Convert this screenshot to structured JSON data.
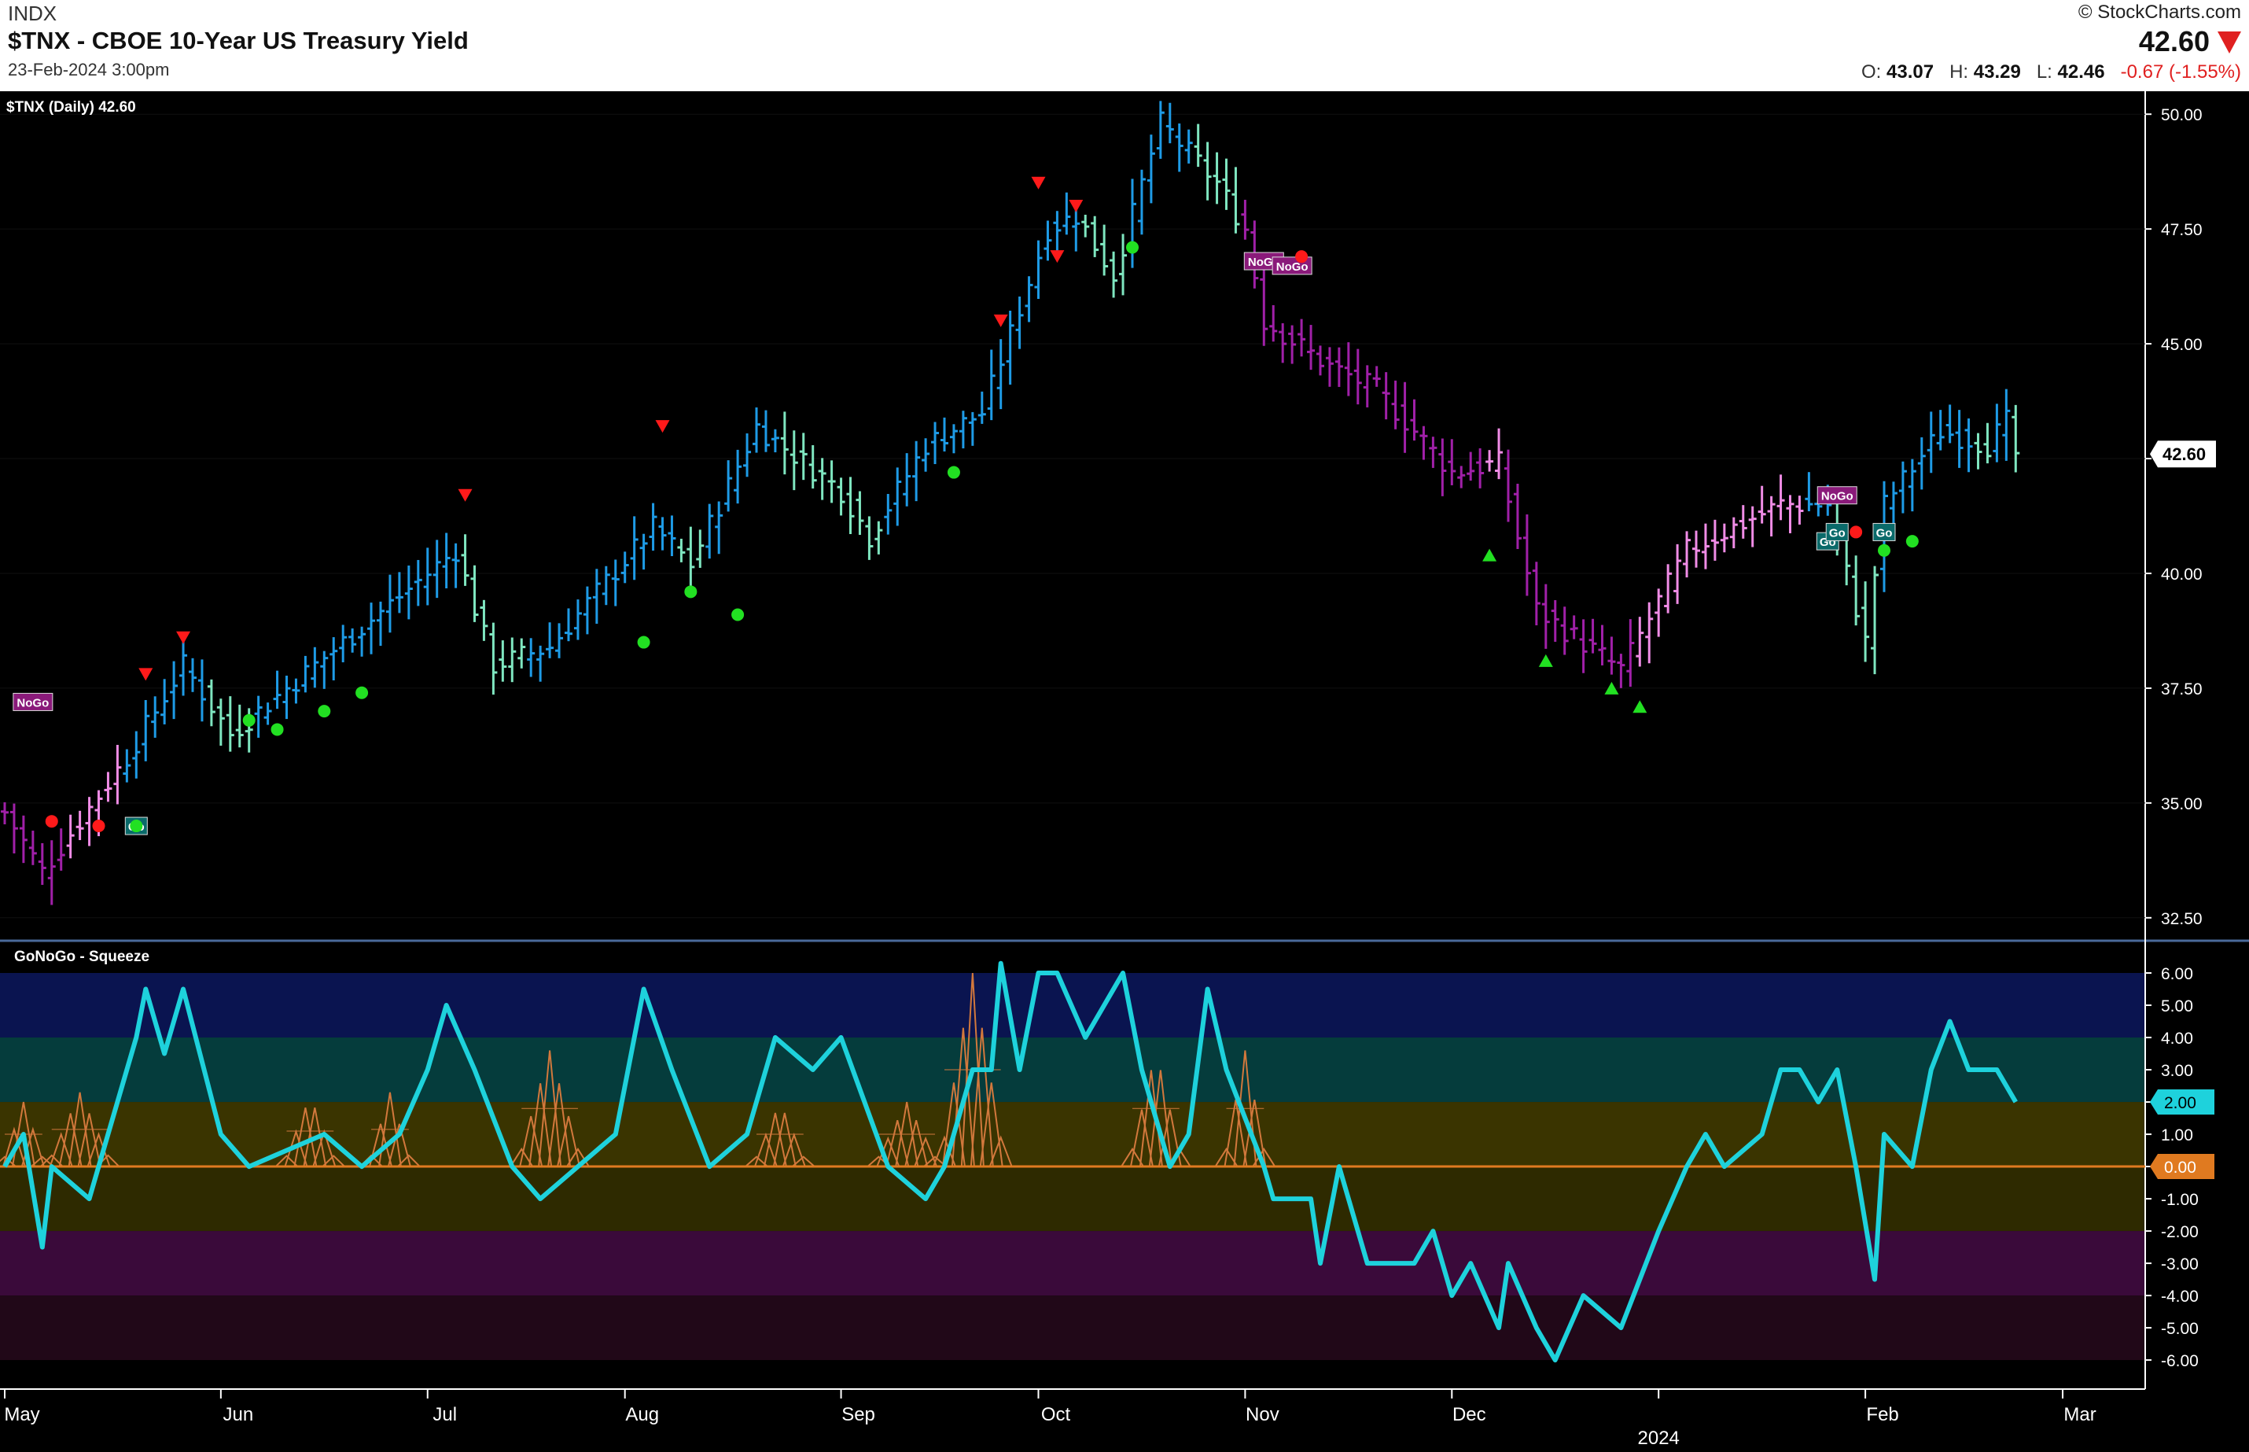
{
  "header": {
    "exchange": "INDX",
    "title": "$TNX - CBOE 10-Year US Treasury Yield",
    "datetime": "23-Feb-2024 3:00pm",
    "copyright": "© StockCharts.com",
    "last": "42.60",
    "ohlc": {
      "open_label": "O:",
      "open": "43.07",
      "high_label": "H:",
      "high": "43.29",
      "low_label": "L:",
      "low": "42.46",
      "change": "-0.67 (-1.55%)"
    }
  },
  "colors": {
    "background": "#000000",
    "go_strong": "#1e9be6",
    "go_weak": "#7fe6c0",
    "nogo_strong": "#a020a8",
    "nogo_weak": "#f08ce6",
    "amber": "#e07a20",
    "oscillator": "#1ed2dc",
    "squeeze": "#d2783c",
    "zero_line": "#e07a20"
  },
  "chart_data": [
    {
      "type": "ohlc",
      "panel_label": "$TNX (Daily) 42.60",
      "last_value_label": "42.60",
      "y_ticks": [
        "32.50",
        "35.00",
        "37.50",
        "40.00",
        "42.50",
        "45.00",
        "47.50",
        "50.00"
      ],
      "ylim": [
        32.0,
        50.5
      ],
      "x_labels": [
        "May",
        "Jun",
        "Jul",
        "Aug",
        "Sep",
        "Oct",
        "Nov",
        "Dec",
        "2024",
        "Feb",
        "Mar"
      ],
      "key_points": [
        {
          "date": "2023-05-01",
          "close": 34.8
        },
        {
          "date": "2023-05-05",
          "close": 33.5
        },
        {
          "date": "2023-05-18",
          "close": 36.0
        },
        {
          "date": "2023-05-26",
          "close": 38.0
        },
        {
          "date": "2023-06-02",
          "close": 36.5
        },
        {
          "date": "2023-06-15",
          "close": 38.0
        },
        {
          "date": "2023-07-06",
          "close": 40.5
        },
        {
          "date": "2023-07-12",
          "close": 38.0
        },
        {
          "date": "2023-07-20",
          "close": 38.4
        },
        {
          "date": "2023-08-04",
          "close": 41.0
        },
        {
          "date": "2023-08-10",
          "close": 40.2
        },
        {
          "date": "2023-08-21",
          "close": 43.2
        },
        {
          "date": "2023-09-01",
          "close": 41.8
        },
        {
          "date": "2023-09-06",
          "close": 40.8
        },
        {
          "date": "2023-09-14",
          "close": 42.8
        },
        {
          "date": "2023-09-22",
          "close": 43.5
        },
        {
          "date": "2023-10-03",
          "close": 47.5
        },
        {
          "date": "2023-10-06",
          "close": 47.8
        },
        {
          "date": "2023-10-12",
          "close": 46.5
        },
        {
          "date": "2023-10-19",
          "close": 49.8
        },
        {
          "date": "2023-10-27",
          "close": 48.5
        },
        {
          "date": "2023-11-01",
          "close": 47.5
        },
        {
          "date": "2023-11-03",
          "close": 45.5
        },
        {
          "date": "2023-11-14",
          "close": 44.5
        },
        {
          "date": "2023-11-21",
          "close": 44.0
        },
        {
          "date": "2023-12-01",
          "close": 42.2
        },
        {
          "date": "2023-12-08",
          "close": 42.4
        },
        {
          "date": "2023-12-14",
          "close": 39.2
        },
        {
          "date": "2023-12-27",
          "close": 37.9
        },
        {
          "date": "2024-01-05",
          "close": 40.5
        },
        {
          "date": "2024-01-19",
          "close": 41.5
        },
        {
          "date": "2024-01-26",
          "close": 41.5
        },
        {
          "date": "2024-02-01",
          "close": 38.5
        },
        {
          "date": "2024-02-05",
          "close": 41.5
        },
        {
          "date": "2024-02-13",
          "close": 43.1
        },
        {
          "date": "2024-02-20",
          "close": 42.8
        },
        {
          "date": "2024-02-22",
          "close": 43.3
        },
        {
          "date": "2024-02-23",
          "close": 42.6
        }
      ],
      "color_regimes": [
        {
          "from": "2023-05-01",
          "to": "2023-05-17",
          "state": "nogo"
        },
        {
          "from": "2023-05-18",
          "to": "2023-10-31",
          "state": "go"
        },
        {
          "from": "2023-11-01",
          "to": "2024-01-23",
          "state": "nogo"
        },
        {
          "from": "2024-01-24",
          "to": "2024-02-23",
          "state": "go"
        }
      ],
      "annotations": [
        {
          "type": "label",
          "text": "NoGo",
          "date": "2023-05-04",
          "y": 37.2
        },
        {
          "type": "label",
          "text": "Go",
          "date": "2023-05-19",
          "y": 34.5
        },
        {
          "type": "label",
          "text": "NoGo",
          "date": "2023-11-03",
          "y": 46.8
        },
        {
          "type": "label",
          "text": "NoGo",
          "date": "2023-11-08",
          "y": 46.7
        },
        {
          "type": "label",
          "text": "NoGo",
          "date": "2024-01-29",
          "y": 41.7
        },
        {
          "type": "label",
          "text": "Go",
          "date": "2024-01-26",
          "y": 40.7
        },
        {
          "type": "label",
          "text": "Go",
          "date": "2024-01-29",
          "y": 40.9
        },
        {
          "type": "label",
          "text": "Go",
          "date": "2024-02-05",
          "y": 40.9
        },
        {
          "type": "down",
          "date": "2023-05-22",
          "y": 37.8
        },
        {
          "type": "down",
          "date": "2023-05-26",
          "y": 38.6
        },
        {
          "type": "down",
          "date": "2023-07-07",
          "y": 41.7
        },
        {
          "type": "down",
          "date": "2023-08-07",
          "y": 43.2
        },
        {
          "type": "down",
          "date": "2023-09-26",
          "y": 45.5
        },
        {
          "type": "down",
          "date": "2023-10-02",
          "y": 48.5
        },
        {
          "type": "down",
          "date": "2023-10-04",
          "y": 46.9
        },
        {
          "type": "down",
          "date": "2023-10-06",
          "y": 48.0
        },
        {
          "type": "down",
          "date": "2023-10-19",
          "y": 50.7
        },
        {
          "type": "up",
          "date": "2023-12-07",
          "y": 40.4
        },
        {
          "type": "up",
          "date": "2023-12-15",
          "y": 38.1
        },
        {
          "type": "up",
          "date": "2023-12-26",
          "y": 37.5
        },
        {
          "type": "up",
          "date": "2023-12-29",
          "y": 37.1
        },
        {
          "type": "dot_red",
          "date": "2023-05-08",
          "y": 34.6
        },
        {
          "type": "dot_red",
          "date": "2023-05-15",
          "y": 34.5
        },
        {
          "type": "dot_red",
          "date": "2023-11-09",
          "y": 46.9
        },
        {
          "type": "dot_red",
          "date": "2024-01-31",
          "y": 40.9
        },
        {
          "type": "dot_green",
          "date": "2023-05-19",
          "y": 34.5
        },
        {
          "type": "dot_green",
          "date": "2023-06-06",
          "y": 36.8
        },
        {
          "type": "dot_green",
          "date": "2023-06-09",
          "y": 36.6
        },
        {
          "type": "dot_green",
          "date": "2023-06-16",
          "y": 37.0
        },
        {
          "type": "dot_green",
          "date": "2023-06-22",
          "y": 37.4
        },
        {
          "type": "dot_green",
          "date": "2023-08-03",
          "y": 38.5
        },
        {
          "type": "dot_green",
          "date": "2023-08-10",
          "y": 39.6
        },
        {
          "type": "dot_green",
          "date": "2023-08-17",
          "y": 39.1
        },
        {
          "type": "dot_green",
          "date": "2023-09-19",
          "y": 42.2
        },
        {
          "type": "dot_green",
          "date": "2023-10-16",
          "y": 47.1
        },
        {
          "type": "dot_green",
          "date": "2024-02-05",
          "y": 40.5
        },
        {
          "type": "dot_green",
          "date": "2024-02-08",
          "y": 40.7
        }
      ]
    },
    {
      "type": "line",
      "panel_label": "GoNoGo - Squeeze",
      "series_label": "2.00",
      "y_ticks": [
        "6.00",
        "5.00",
        "4.00",
        "3.00",
        "2.00",
        "1.00",
        "0.00",
        "-1.00",
        "-2.00",
        "-3.00",
        "-4.00",
        "-5.00",
        "-6.00"
      ],
      "ylim": [
        -6.9,
        7.0
      ],
      "highlight_value_label": "0.00",
      "key_points": [
        {
          "date": "2023-05-01",
          "value": 0.0
        },
        {
          "date": "2023-05-03",
          "value": 1.0
        },
        {
          "date": "2023-05-05",
          "value": -2.5
        },
        {
          "date": "2023-05-08",
          "value": 0.0
        },
        {
          "date": "2023-05-12",
          "value": -1.0
        },
        {
          "date": "2023-05-16",
          "value": 1.0
        },
        {
          "date": "2023-05-19",
          "value": 4.0
        },
        {
          "date": "2023-05-22",
          "value": 5.5
        },
        {
          "date": "2023-05-24",
          "value": 3.5
        },
        {
          "date": "2023-05-26",
          "value": 5.5
        },
        {
          "date": "2023-06-01",
          "value": 1.0
        },
        {
          "date": "2023-06-06",
          "value": 0.0
        },
        {
          "date": "2023-06-16",
          "value": 1.0
        },
        {
          "date": "2023-06-22",
          "value": 0.0
        },
        {
          "date": "2023-06-28",
          "value": 1.0
        },
        {
          "date": "2023-07-03",
          "value": 3.0
        },
        {
          "date": "2023-07-05",
          "value": 5.0
        },
        {
          "date": "2023-07-10",
          "value": 3.0
        },
        {
          "date": "2023-07-14",
          "value": 0.0
        },
        {
          "date": "2023-07-19",
          "value": -1.0
        },
        {
          "date": "2023-07-25",
          "value": 0.0
        },
        {
          "date": "2023-07-31",
          "value": 1.0
        },
        {
          "date": "2023-08-03",
          "value": 5.5
        },
        {
          "date": "2023-08-08",
          "value": 3.0
        },
        {
          "date": "2023-08-14",
          "value": 0.0
        },
        {
          "date": "2023-08-18",
          "value": 1.0
        },
        {
          "date": "2023-08-23",
          "value": 4.0
        },
        {
          "date": "2023-08-29",
          "value": 3.0
        },
        {
          "date": "2023-09-01",
          "value": 4.0
        },
        {
          "date": "2023-09-08",
          "value": 0.0
        },
        {
          "date": "2023-09-14",
          "value": -1.0
        },
        {
          "date": "2023-09-18",
          "value": 0.0
        },
        {
          "date": "2023-09-21",
          "value": 3.0
        },
        {
          "date": "2023-09-25",
          "value": 3.0
        },
        {
          "date": "2023-09-26",
          "value": 6.3
        },
        {
          "date": "2023-09-28",
          "value": 3.0
        },
        {
          "date": "2023-10-02",
          "value": 6.0
        },
        {
          "date": "2023-10-04",
          "value": 6.0
        },
        {
          "date": "2023-10-09",
          "value": 4.0
        },
        {
          "date": "2023-10-13",
          "value": 6.0
        },
        {
          "date": "2023-10-17",
          "value": 3.0
        },
        {
          "date": "2023-10-20",
          "value": 0.0
        },
        {
          "date": "2023-10-24",
          "value": 1.0
        },
        {
          "date": "2023-10-26",
          "value": 5.5
        },
        {
          "date": "2023-10-30",
          "value": 3.0
        },
        {
          "date": "2023-11-03",
          "value": 0.0
        },
        {
          "date": "2023-11-06",
          "value": -1.0
        },
        {
          "date": "2023-11-10",
          "value": -1.0
        },
        {
          "date": "2023-11-13",
          "value": -3.0
        },
        {
          "date": "2023-11-15",
          "value": 0.0
        },
        {
          "date": "2023-11-20",
          "value": -3.0
        },
        {
          "date": "2023-11-27",
          "value": -3.0
        },
        {
          "date": "2023-11-29",
          "value": -2.0
        },
        {
          "date": "2023-12-01",
          "value": -4.0
        },
        {
          "date": "2023-12-05",
          "value": -3.0
        },
        {
          "date": "2023-12-08",
          "value": -5.0
        },
        {
          "date": "2023-12-11",
          "value": -3.0
        },
        {
          "date": "2023-12-14",
          "value": -5.0
        },
        {
          "date": "2023-12-18",
          "value": -6.0
        },
        {
          "date": "2023-12-21",
          "value": -4.0
        },
        {
          "date": "2023-12-27",
          "value": -5.0
        },
        {
          "date": "2024-01-02",
          "value": -2.0
        },
        {
          "date": "2024-01-05",
          "value": 0.0
        },
        {
          "date": "2024-01-09",
          "value": 1.0
        },
        {
          "date": "2024-01-11",
          "value": 0.0
        },
        {
          "date": "2024-01-17",
          "value": 1.0
        },
        {
          "date": "2024-01-19",
          "value": 3.0
        },
        {
          "date": "2024-01-23",
          "value": 3.0
        },
        {
          "date": "2024-01-25",
          "value": 2.0
        },
        {
          "date": "2024-01-29",
          "value": 3.0
        },
        {
          "date": "2024-01-31",
          "value": 0.0
        },
        {
          "date": "2024-02-02",
          "value": -3.5
        },
        {
          "date": "2024-02-05",
          "value": 1.0
        },
        {
          "date": "2024-02-08",
          "value": 0.0
        },
        {
          "date": "2024-02-12",
          "value": 3.0
        },
        {
          "date": "2024-02-14",
          "value": 4.5
        },
        {
          "date": "2024-02-16",
          "value": 3.0
        },
        {
          "date": "2024-02-21",
          "value": 3.0
        },
        {
          "date": "2024-02-23",
          "value": 2.0
        }
      ],
      "squeeze_periods": [
        {
          "from": "2023-05-01",
          "to": "2023-05-05",
          "peak": 2.0
        },
        {
          "from": "2023-05-08",
          "to": "2023-05-16",
          "peak": 2.3
        },
        {
          "from": "2023-06-12",
          "to": "2023-06-19",
          "peak": 2.2
        },
        {
          "from": "2023-06-23",
          "to": "2023-06-29",
          "peak": 2.3
        },
        {
          "from": "2023-07-17",
          "to": "2023-07-25",
          "peak": 3.6
        },
        {
          "from": "2023-08-21",
          "to": "2023-08-28",
          "peak": 2.0
        },
        {
          "from": "2023-09-07",
          "to": "2023-09-15",
          "peak": 2.0
        },
        {
          "from": "2023-09-18",
          "to": "2023-09-26",
          "peak": 6.0
        },
        {
          "from": "2023-10-16",
          "to": "2023-10-23",
          "peak": 3.6
        },
        {
          "from": "2023-10-30",
          "to": "2023-11-03",
          "peak": 3.6
        }
      ],
      "bands": [
        {
          "from": 4.0,
          "to": 6.0,
          "color": "#0a1450"
        },
        {
          "from": 2.0,
          "to": 4.0,
          "color": "#053c3c"
        },
        {
          "from": 0.0,
          "to": 2.0,
          "color": "#3a3400"
        },
        {
          "from": -2.0,
          "to": 0.0,
          "color": "#2e2a00"
        },
        {
          "from": -4.0,
          "to": -2.0,
          "color": "#3a0a3a"
        },
        {
          "from": -6.0,
          "to": -4.0,
          "color": "#210818"
        }
      ]
    }
  ]
}
